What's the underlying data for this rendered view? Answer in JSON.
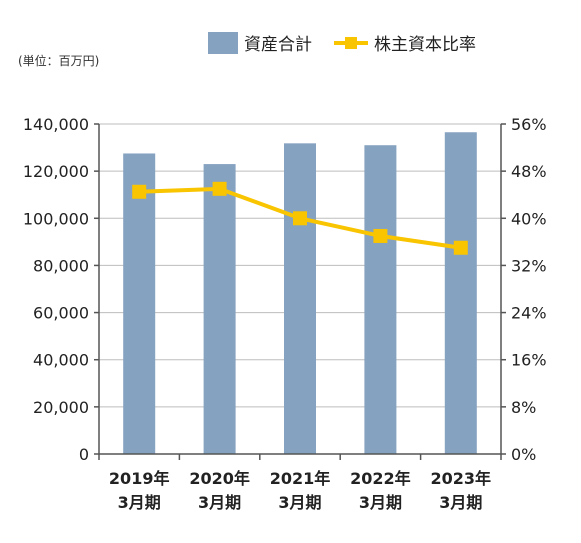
{
  "chart_data": {
    "type": "bar",
    "unit_note": "(単位：百万円)",
    "categories": [
      "2019年3月期",
      "2020年3月期",
      "2021年3月期",
      "2022年3月期",
      "2023年3月期"
    ],
    "category_lines": [
      [
        "2019年",
        "3月期"
      ],
      [
        "2020年",
        "3月期"
      ],
      [
        "2021年",
        "3月期"
      ],
      [
        "2022年",
        "3月期"
      ],
      [
        "2023年",
        "3月期"
      ]
    ],
    "series": [
      {
        "name": "資産合計",
        "type": "bar",
        "axis": "left",
        "color": "#85a2c1",
        "values": [
          127500,
          123000,
          131800,
          131000,
          136500
        ]
      },
      {
        "name": "株主資本比率",
        "type": "line",
        "axis": "right",
        "color": "#f9c400",
        "values": [
          44.5,
          45.0,
          40.0,
          37.0,
          35.0
        ]
      }
    ],
    "y_left": {
      "min": 0,
      "max": 140000,
      "ticks": [
        0,
        20000,
        40000,
        60000,
        80000,
        100000,
        120000,
        140000
      ],
      "tick_labels": [
        "0",
        "20,000",
        "40,000",
        "60,000",
        "80,000",
        "100,000",
        "120,000",
        "140,000"
      ]
    },
    "y_right": {
      "min": 0,
      "max": 56,
      "ticks": [
        0,
        8,
        16,
        24,
        32,
        40,
        48,
        56
      ],
      "tick_labels": [
        "0%",
        "8%",
        "16%",
        "24%",
        "32%",
        "40%",
        "48%",
        "56%"
      ]
    },
    "grid": true,
    "legend_position": "top-right"
  }
}
